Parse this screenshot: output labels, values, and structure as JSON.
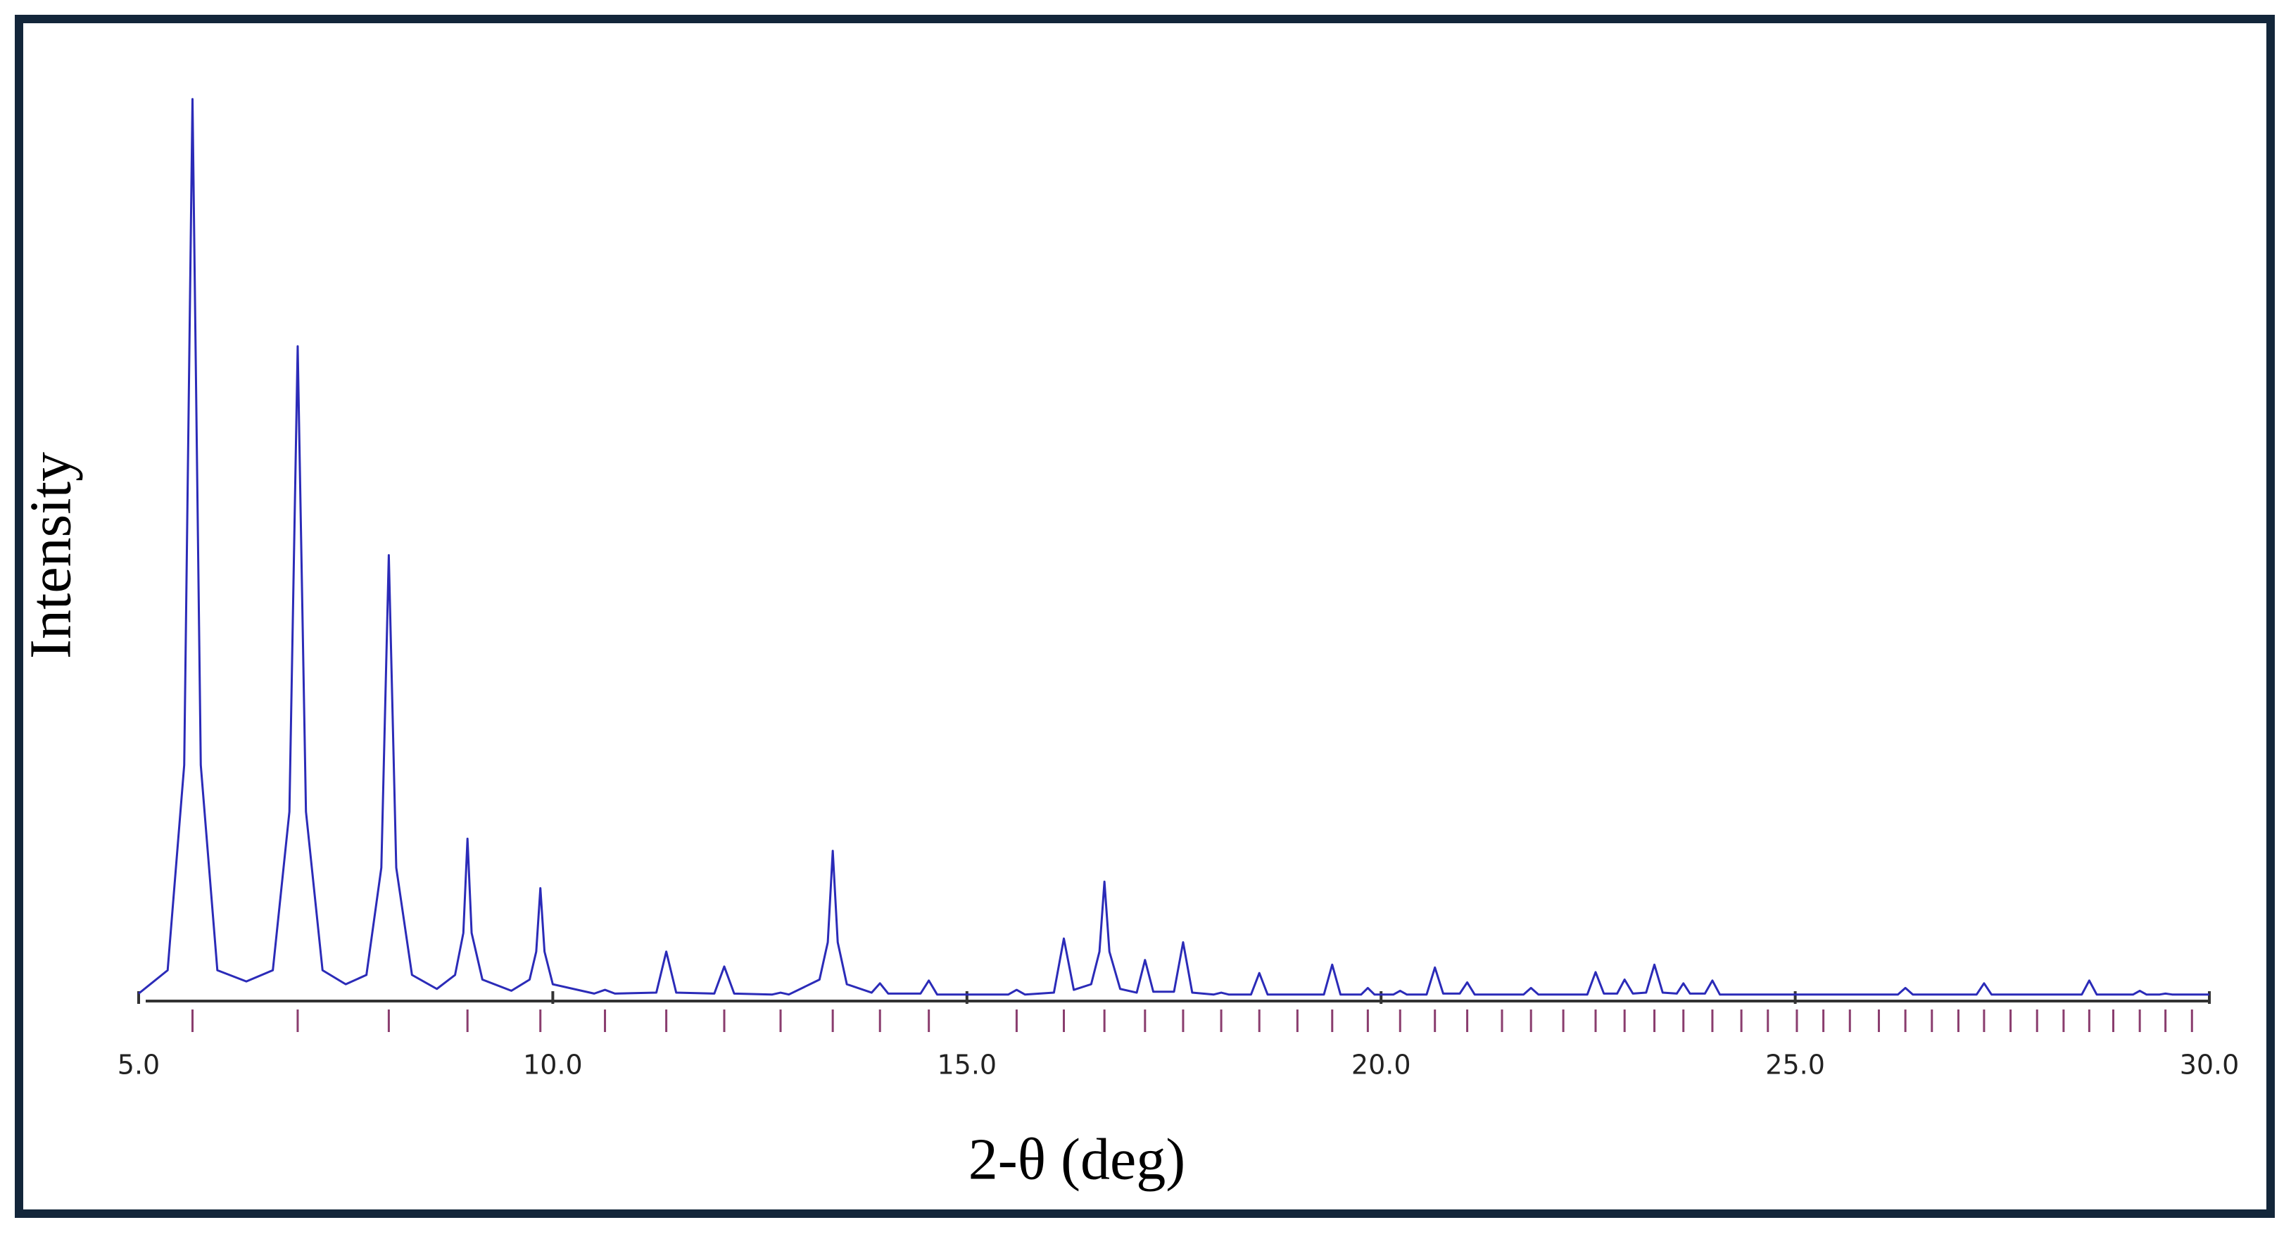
{
  "chart_data": {
    "type": "line",
    "x_label": "2-θ (deg)",
    "y_label": "Intensity",
    "color": "#2b2bb8",
    "reflection_color": "#8a3d6e",
    "xlim": [
      5,
      30
    ],
    "ylim": [
      0,
      100
    ],
    "xticks": [
      {
        "value": 5,
        "label": "5.0"
      },
      {
        "value": 10,
        "label": "10.0"
      },
      {
        "value": 15,
        "label": "15.0"
      },
      {
        "value": 20,
        "label": "20.0"
      },
      {
        "value": 25,
        "label": "25.0"
      },
      {
        "value": 30,
        "label": "30.0"
      }
    ],
    "x": [
      5.0,
      5.35,
      5.55,
      5.65,
      5.75,
      5.95,
      6.3,
      6.62,
      6.82,
      6.92,
      7.02,
      7.22,
      7.5,
      7.75,
      7.93,
      8.02,
      8.11,
      8.3,
      8.6,
      8.82,
      8.92,
      8.97,
      9.02,
      9.15,
      9.5,
      9.72,
      9.8,
      9.85,
      9.9,
      10.0,
      10.5,
      10.63,
      10.75,
      11.25,
      11.37,
      11.49,
      11.95,
      12.07,
      12.19,
      12.65,
      12.75,
      12.85,
      13.22,
      13.32,
      13.38,
      13.44,
      13.55,
      13.85,
      13.95,
      14.05,
      14.44,
      14.54,
      14.64,
      15.5,
      15.6,
      15.7,
      16.05,
      16.17,
      16.29,
      16.5,
      16.6,
      16.66,
      16.72,
      16.85,
      17.05,
      17.15,
      17.25,
      17.5,
      17.61,
      17.72,
      17.98,
      18.07,
      18.16,
      18.43,
      18.53,
      18.63,
      19.31,
      19.41,
      19.51,
      19.76,
      19.84,
      19.92,
      20.15,
      20.23,
      20.31,
      20.55,
      20.65,
      20.75,
      20.95,
      21.04,
      21.13,
      21.72,
      21.81,
      21.9,
      22.49,
      22.59,
      22.69,
      22.85,
      22.94,
      23.04,
      23.2,
      23.3,
      23.4,
      23.57,
      23.65,
      23.73,
      23.91,
      24.0,
      24.09,
      26.24,
      26.33,
      26.42,
      27.19,
      27.28,
      27.37,
      28.46,
      28.55,
      28.64,
      29.08,
      29.16,
      29.24,
      29.4,
      29.47,
      29.55,
      30.0
    ],
    "values": [
      0.5,
      3,
      25,
      96.4,
      25,
      3,
      1.8,
      3,
      20,
      69.9,
      20,
      3,
      1.5,
      2.5,
      14,
      47.5,
      14,
      2.5,
      1,
      2.5,
      7,
      17.1,
      7,
      2,
      0.8,
      2,
      5,
      11.8,
      5,
      1.5,
      0.5,
      0.9,
      0.5,
      0.6,
      5.0,
      0.6,
      0.5,
      3.4,
      0.5,
      0.4,
      0.6,
      0.4,
      2,
      6,
      15.8,
      6,
      1.5,
      0.6,
      1.6,
      0.5,
      0.5,
      1.9,
      0.4,
      0.4,
      0.9,
      0.4,
      0.6,
      6.4,
      0.9,
      1.5,
      5,
      12.5,
      5,
      1,
      0.6,
      4.1,
      0.7,
      0.7,
      6.0,
      0.6,
      0.4,
      0.6,
      0.4,
      0.4,
      2.7,
      0.4,
      0.4,
      3.6,
      0.4,
      0.4,
      1.1,
      0.4,
      0.4,
      0.8,
      0.4,
      0.4,
      3.3,
      0.5,
      0.5,
      1.7,
      0.4,
      0.4,
      1.1,
      0.4,
      0.4,
      2.8,
      0.5,
      0.5,
      2.0,
      0.5,
      0.6,
      3.6,
      0.6,
      0.5,
      1.6,
      0.5,
      0.5,
      1.9,
      0.4,
      0.4,
      1.1,
      0.4,
      0.4,
      1.6,
      0.4,
      0.4,
      1.9,
      0.4,
      0.4,
      0.8,
      0.4,
      0.4,
      0.5,
      0.4,
      0.4
    ],
    "reflections": [
      5.65,
      6.92,
      8.02,
      8.97,
      9.85,
      10.63,
      11.37,
      12.07,
      12.75,
      13.38,
      13.95,
      14.54,
      15.6,
      16.17,
      16.66,
      17.15,
      17.61,
      18.07,
      18.53,
      18.99,
      19.41,
      19.84,
      20.23,
      20.65,
      21.04,
      21.46,
      21.81,
      22.2,
      22.59,
      22.94,
      23.3,
      23.65,
      24.0,
      24.35,
      24.67,
      25.02,
      25.34,
      25.66,
      26.01,
      26.33,
      26.65,
      26.97,
      27.28,
      27.6,
      27.92,
      28.24,
      28.55,
      28.84,
      29.16,
      29.47,
      29.79
    ]
  }
}
